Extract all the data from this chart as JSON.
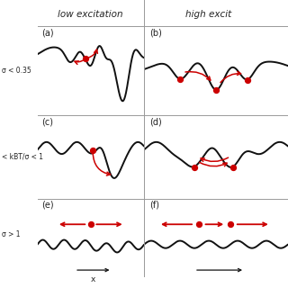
{
  "title_left": "low excitation",
  "title_right": "high excit",
  "label_a": "(a)",
  "label_b": "(b)",
  "label_c": "(c)",
  "label_d": "(d)",
  "label_e": "(e)",
  "label_f": "(f)",
  "row1_label": "σ < 0.35",
  "row2_label": "< kBT/σ < 1",
  "row3_label": "σ > 1",
  "xlabel": "x",
  "bg_color": "#ffffff",
  "line_color": "#111111",
  "arrow_color": "#cc0000",
  "dot_color": "#cc0000",
  "div_color": "#999999"
}
